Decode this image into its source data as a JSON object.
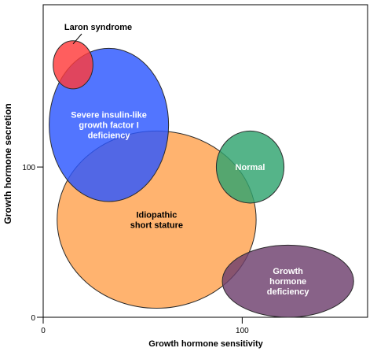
{
  "chart_data": {
    "type": "bubble",
    "title": "",
    "xlabel": "Growth hormone sensitivity",
    "ylabel": "Growth hormone secretion",
    "xlim": [
      0,
      163
    ],
    "ylim": [
      0,
      208
    ],
    "xticks": [
      0,
      100
    ],
    "yticks": [
      0,
      100
    ],
    "grid": false,
    "regions": [
      {
        "name": "Idiopathic short stature",
        "lines": [
          "Idiopathic",
          "short stature"
        ],
        "cx": 57,
        "cy": 65,
        "rx": 50,
        "ry": 59,
        "color": "#FFA24F",
        "label_color": "#000000"
      },
      {
        "name": "Severe insulin-like growth factor I deficiency",
        "lines": [
          "Severe insulin-like",
          "growth factor I",
          "deficiency"
        ],
        "cx": 33,
        "cy": 128,
        "rx": 30,
        "ry": 51,
        "color": "#2C57FF",
        "label_color": "#ffffff"
      },
      {
        "name": "Laron syndrome",
        "lines": [
          "Laron syndrome"
        ],
        "cx": 15,
        "cy": 168,
        "rx": 10,
        "ry": 16,
        "color": "#FF3A3A",
        "label_color": "#000000"
      },
      {
        "name": "Normal",
        "lines": [
          "Normal"
        ],
        "cx": 104,
        "cy": 100,
        "rx": 17,
        "ry": 24,
        "color": "#2FA46F",
        "label_color": "#ffffff"
      },
      {
        "name": "Growth hormone deficiency",
        "lines": [
          "Growth",
          "hormone",
          "deficiency"
        ],
        "cx": 123,
        "cy": 24,
        "rx": 33,
        "ry": 24,
        "color": "#6E3F6E",
        "label_color": "#ffffff"
      }
    ]
  }
}
